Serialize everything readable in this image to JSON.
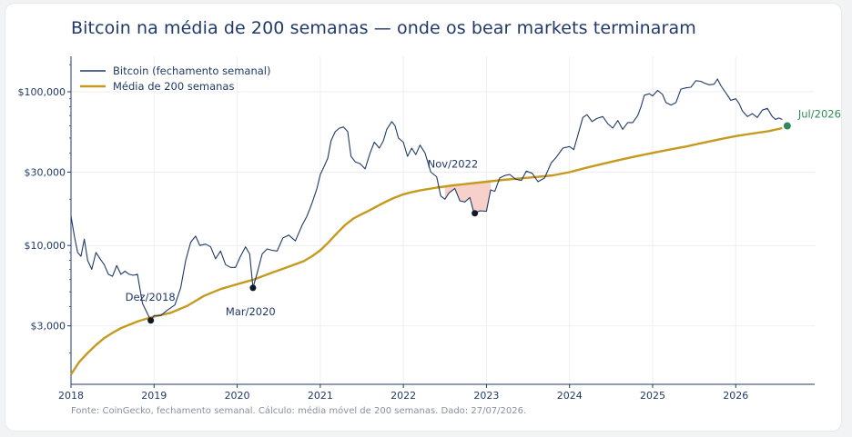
{
  "chart_data": {
    "type": "line",
    "title": "Bitcoin na média de 200 semanas — onde os bear markets terminaram",
    "footer": "Fonte: CoinGecko, fechamento semanal. Cálculo: média móvel de 200 semanas. Dado: 27/07/2026.",
    "y_scale": "log",
    "ylim": [
      1250,
      170000
    ],
    "xlim": [
      2018.0,
      2026.95
    ],
    "grid": true,
    "legend_position": "top-left",
    "x_ticks": [
      {
        "value": 2018,
        "label": "2018"
      },
      {
        "value": 2019,
        "label": "2019"
      },
      {
        "value": 2020,
        "label": "2020"
      },
      {
        "value": 2021,
        "label": "2021"
      },
      {
        "value": 2022,
        "label": "2022"
      },
      {
        "value": 2023,
        "label": "2023"
      },
      {
        "value": 2024,
        "label": "2024"
      },
      {
        "value": 2025,
        "label": "2025"
      },
      {
        "value": 2026,
        "label": "2026"
      }
    ],
    "y_ticks": [
      {
        "value": 3000,
        "label": "$3,000"
      },
      {
        "value": 10000,
        "label": "$10,000"
      },
      {
        "value": 30000,
        "label": "$30,000"
      },
      {
        "value": 100000,
        "label": "$100,000"
      }
    ],
    "series": [
      {
        "name": "Bitcoin (fechamento semanal)",
        "color": "#1f3a68",
        "points": [
          [
            2018.0,
            15500
          ],
          [
            2018.04,
            11500
          ],
          [
            2018.08,
            9000
          ],
          [
            2018.12,
            8500
          ],
          [
            2018.16,
            11000
          ],
          [
            2018.2,
            8000
          ],
          [
            2018.25,
            7000
          ],
          [
            2018.3,
            9000
          ],
          [
            2018.35,
            8200
          ],
          [
            2018.4,
            7500
          ],
          [
            2018.45,
            6500
          ],
          [
            2018.5,
            6300
          ],
          [
            2018.55,
            7400
          ],
          [
            2018.6,
            6500
          ],
          [
            2018.65,
            6800
          ],
          [
            2018.7,
            6500
          ],
          [
            2018.75,
            6400
          ],
          [
            2018.8,
            6500
          ],
          [
            2018.86,
            4200
          ],
          [
            2018.92,
            3600
          ],
          [
            2018.96,
            3250
          ],
          [
            2019.0,
            3500
          ],
          [
            2019.08,
            3500
          ],
          [
            2019.16,
            3800
          ],
          [
            2019.25,
            4100
          ],
          [
            2019.32,
            5300
          ],
          [
            2019.38,
            8000
          ],
          [
            2019.44,
            10500
          ],
          [
            2019.5,
            11500
          ],
          [
            2019.55,
            10000
          ],
          [
            2019.62,
            10200
          ],
          [
            2019.68,
            9800
          ],
          [
            2019.74,
            8200
          ],
          [
            2019.8,
            9200
          ],
          [
            2019.86,
            7500
          ],
          [
            2019.92,
            7200
          ],
          [
            2019.98,
            7200
          ],
          [
            2020.04,
            8500
          ],
          [
            2020.1,
            9800
          ],
          [
            2020.15,
            8800
          ],
          [
            2020.19,
            5300
          ],
          [
            2020.24,
            6600
          ],
          [
            2020.3,
            8800
          ],
          [
            2020.36,
            9500
          ],
          [
            2020.42,
            9300
          ],
          [
            2020.48,
            9200
          ],
          [
            2020.55,
            11200
          ],
          [
            2020.62,
            11700
          ],
          [
            2020.7,
            10700
          ],
          [
            2020.78,
            13500
          ],
          [
            2020.84,
            15500
          ],
          [
            2020.9,
            18800
          ],
          [
            2020.96,
            23500
          ],
          [
            2021.0,
            29000
          ],
          [
            2021.05,
            33000
          ],
          [
            2021.09,
            37000
          ],
          [
            2021.13,
            48000
          ],
          [
            2021.18,
            55000
          ],
          [
            2021.23,
            58000
          ],
          [
            2021.28,
            59000
          ],
          [
            2021.33,
            55000
          ],
          [
            2021.37,
            38000
          ],
          [
            2021.42,
            35000
          ],
          [
            2021.48,
            34000
          ],
          [
            2021.54,
            31500
          ],
          [
            2021.6,
            40000
          ],
          [
            2021.65,
            47000
          ],
          [
            2021.71,
            43000
          ],
          [
            2021.76,
            48000
          ],
          [
            2021.8,
            57000
          ],
          [
            2021.86,
            64000
          ],
          [
            2021.9,
            60000
          ],
          [
            2021.94,
            50000
          ],
          [
            2022.0,
            47000
          ],
          [
            2022.05,
            38000
          ],
          [
            2022.1,
            43000
          ],
          [
            2022.15,
            39000
          ],
          [
            2022.2,
            45000
          ],
          [
            2022.26,
            40000
          ],
          [
            2022.33,
            30000
          ],
          [
            2022.4,
            28000
          ],
          [
            2022.45,
            21000
          ],
          [
            2022.5,
            20000
          ],
          [
            2022.55,
            22000
          ],
          [
            2022.62,
            23500
          ],
          [
            2022.68,
            19500
          ],
          [
            2022.74,
            19200
          ],
          [
            2022.8,
            20500
          ],
          [
            2022.85,
            16200
          ],
          [
            2022.92,
            16800
          ],
          [
            2023.0,
            16700
          ],
          [
            2023.05,
            23000
          ],
          [
            2023.1,
            22500
          ],
          [
            2023.16,
            27500
          ],
          [
            2023.22,
            28500
          ],
          [
            2023.28,
            29000
          ],
          [
            2023.35,
            27000
          ],
          [
            2023.42,
            26500
          ],
          [
            2023.48,
            30500
          ],
          [
            2023.55,
            29500
          ],
          [
            2023.62,
            26000
          ],
          [
            2023.7,
            27500
          ],
          [
            2023.78,
            34500
          ],
          [
            2023.84,
            37500
          ],
          [
            2023.92,
            43000
          ],
          [
            2024.0,
            44000
          ],
          [
            2024.05,
            42000
          ],
          [
            2024.1,
            52000
          ],
          [
            2024.16,
            68000
          ],
          [
            2024.21,
            71000
          ],
          [
            2024.27,
            64000
          ],
          [
            2024.33,
            67000
          ],
          [
            2024.4,
            69000
          ],
          [
            2024.46,
            62000
          ],
          [
            2024.52,
            58000
          ],
          [
            2024.58,
            65000
          ],
          [
            2024.64,
            57000
          ],
          [
            2024.7,
            63000
          ],
          [
            2024.76,
            63000
          ],
          [
            2024.82,
            70000
          ],
          [
            2024.86,
            80000
          ],
          [
            2024.9,
            95000
          ],
          [
            2024.96,
            97000
          ],
          [
            2025.0,
            94000
          ],
          [
            2025.06,
            102000
          ],
          [
            2025.12,
            96000
          ],
          [
            2025.16,
            85000
          ],
          [
            2025.22,
            82000
          ],
          [
            2025.28,
            85000
          ],
          [
            2025.34,
            104000
          ],
          [
            2025.4,
            106000
          ],
          [
            2025.46,
            107000
          ],
          [
            2025.52,
            118000
          ],
          [
            2025.58,
            117000
          ],
          [
            2025.62,
            114000
          ],
          [
            2025.68,
            111000
          ],
          [
            2025.74,
            112000
          ],
          [
            2025.78,
            121000
          ],
          [
            2025.82,
            110000
          ],
          [
            2025.86,
            102000
          ],
          [
            2025.9,
            95000
          ],
          [
            2025.94,
            88000
          ],
          [
            2026.0,
            90000
          ],
          [
            2026.04,
            84000
          ],
          [
            2026.08,
            75000
          ],
          [
            2026.14,
            69000
          ],
          [
            2026.2,
            72000
          ],
          [
            2026.26,
            68000
          ],
          [
            2026.32,
            76000
          ],
          [
            2026.38,
            78000
          ],
          [
            2026.44,
            69000
          ],
          [
            2026.48,
            66000
          ],
          [
            2026.52,
            67500
          ],
          [
            2026.56,
            66000
          ]
        ]
      },
      {
        "name": "Média de 200 semanas",
        "color": "#c59a1f",
        "points": [
          [
            2018.0,
            1450
          ],
          [
            2018.1,
            1750
          ],
          [
            2018.2,
            2000
          ],
          [
            2018.3,
            2250
          ],
          [
            2018.4,
            2500
          ],
          [
            2018.5,
            2700
          ],
          [
            2018.6,
            2900
          ],
          [
            2018.7,
            3050
          ],
          [
            2018.8,
            3200
          ],
          [
            2018.9,
            3330
          ],
          [
            2019.0,
            3450
          ],
          [
            2019.2,
            3650
          ],
          [
            2019.4,
            4050
          ],
          [
            2019.6,
            4700
          ],
          [
            2019.8,
            5200
          ],
          [
            2020.0,
            5600
          ],
          [
            2020.2,
            6000
          ],
          [
            2020.4,
            6600
          ],
          [
            2020.6,
            7200
          ],
          [
            2020.8,
            7900
          ],
          [
            2020.9,
            8500
          ],
          [
            2021.0,
            9300
          ],
          [
            2021.1,
            10500
          ],
          [
            2021.2,
            12000
          ],
          [
            2021.3,
            13600
          ],
          [
            2021.4,
            15000
          ],
          [
            2021.5,
            16000
          ],
          [
            2021.6,
            17000
          ],
          [
            2021.7,
            18200
          ],
          [
            2021.8,
            19400
          ],
          [
            2021.9,
            20500
          ],
          [
            2022.0,
            21500
          ],
          [
            2022.1,
            22200
          ],
          [
            2022.2,
            22800
          ],
          [
            2022.4,
            23800
          ],
          [
            2022.6,
            24600
          ],
          [
            2022.8,
            25300
          ],
          [
            2023.0,
            26000
          ],
          [
            2023.2,
            26700
          ],
          [
            2023.4,
            27300
          ],
          [
            2023.6,
            27900
          ],
          [
            2023.8,
            28600
          ],
          [
            2024.0,
            30000
          ],
          [
            2024.2,
            32000
          ],
          [
            2024.4,
            34000
          ],
          [
            2024.6,
            36000
          ],
          [
            2024.8,
            38000
          ],
          [
            2025.0,
            40000
          ],
          [
            2025.2,
            42000
          ],
          [
            2025.4,
            44000
          ],
          [
            2025.6,
            46500
          ],
          [
            2025.8,
            49000
          ],
          [
            2026.0,
            51500
          ],
          [
            2026.2,
            53500
          ],
          [
            2026.4,
            55500
          ],
          [
            2026.56,
            58000
          ]
        ]
      }
    ],
    "shaded_region": {
      "label": "",
      "from": 2022.48,
      "to": 2023.05,
      "color": "#f6c9c0"
    },
    "annotations": [
      {
        "text": "Dez/2018",
        "x": 2018.96,
        "y": 3250,
        "style": "dark",
        "marker": true
      },
      {
        "text": "Mar/2020",
        "x": 2020.19,
        "y": 5300,
        "style": "dark",
        "marker": true
      },
      {
        "text": "Nov/2022",
        "x": 2022.86,
        "y": 16200,
        "style": "dark",
        "marker": true
      },
      {
        "text": "Jul/2026",
        "x": 2026.62,
        "y": 60000,
        "style": "green",
        "marker": true
      }
    ]
  }
}
